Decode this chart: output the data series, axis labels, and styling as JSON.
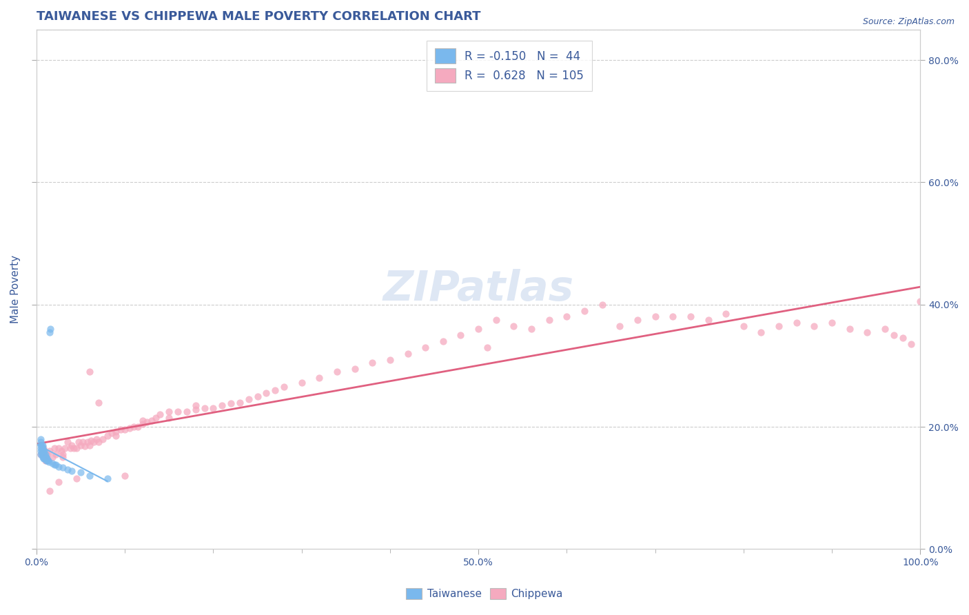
{
  "title": "TAIWANESE VS CHIPPEWA MALE POVERTY CORRELATION CHART",
  "source_text": "Source: ZipAtlas.com",
  "ylabel": "Male Poverty",
  "xlim": [
    0.0,
    1.0
  ],
  "ylim": [
    0.0,
    0.85
  ],
  "taiwanese_color": "#7ab8ed",
  "chippewa_color": "#f5aabf",
  "taiwanese_line_color": "#7ab8ed",
  "chippewa_line_color": "#e06080",
  "R_taiwanese": -0.15,
  "N_taiwanese": 44,
  "R_chippewa": 0.628,
  "N_chippewa": 105,
  "legend_label_taiwanese": "Taiwanese",
  "legend_label_chippewa": "Chippewa",
  "watermark": "ZIPatlas",
  "title_color": "#3a5a9a",
  "axis_label_color": "#3a5a9a",
  "tick_label_color": "#3a5a9a",
  "taiwanese_x": [
    0.005,
    0.005,
    0.005,
    0.005,
    0.005,
    0.005,
    0.006,
    0.006,
    0.006,
    0.006,
    0.007,
    0.007,
    0.007,
    0.007,
    0.007,
    0.008,
    0.008,
    0.008,
    0.008,
    0.009,
    0.009,
    0.009,
    0.009,
    0.01,
    0.01,
    0.01,
    0.011,
    0.011,
    0.012,
    0.012,
    0.013,
    0.014,
    0.015,
    0.016,
    0.018,
    0.02,
    0.022,
    0.025,
    0.03,
    0.035,
    0.04,
    0.05,
    0.06,
    0.08
  ],
  "taiwanese_y": [
    0.155,
    0.16,
    0.165,
    0.17,
    0.175,
    0.18,
    0.155,
    0.16,
    0.165,
    0.17,
    0.15,
    0.155,
    0.16,
    0.165,
    0.17,
    0.148,
    0.152,
    0.158,
    0.162,
    0.148,
    0.152,
    0.155,
    0.16,
    0.148,
    0.15,
    0.155,
    0.145,
    0.15,
    0.145,
    0.148,
    0.145,
    0.143,
    0.355,
    0.36,
    0.14,
    0.138,
    0.138,
    0.135,
    0.133,
    0.13,
    0.128,
    0.125,
    0.12,
    0.115
  ],
  "chippewa_x": [
    0.005,
    0.008,
    0.01,
    0.012,
    0.015,
    0.018,
    0.02,
    0.022,
    0.025,
    0.028,
    0.03,
    0.032,
    0.035,
    0.038,
    0.04,
    0.042,
    0.045,
    0.048,
    0.05,
    0.052,
    0.055,
    0.058,
    0.06,
    0.062,
    0.065,
    0.068,
    0.07,
    0.075,
    0.08,
    0.085,
    0.09,
    0.095,
    0.1,
    0.105,
    0.11,
    0.115,
    0.12,
    0.125,
    0.13,
    0.135,
    0.14,
    0.15,
    0.16,
    0.17,
    0.18,
    0.19,
    0.2,
    0.21,
    0.22,
    0.23,
    0.24,
    0.25,
    0.26,
    0.27,
    0.28,
    0.3,
    0.32,
    0.34,
    0.36,
    0.38,
    0.4,
    0.42,
    0.44,
    0.46,
    0.48,
    0.5,
    0.51,
    0.52,
    0.54,
    0.56,
    0.58,
    0.6,
    0.62,
    0.64,
    0.66,
    0.68,
    0.7,
    0.72,
    0.74,
    0.76,
    0.78,
    0.8,
    0.82,
    0.84,
    0.86,
    0.88,
    0.9,
    0.92,
    0.94,
    0.96,
    0.97,
    0.98,
    0.99,
    1.0,
    0.03,
    0.06,
    0.09,
    0.12,
    0.15,
    0.18,
    0.015,
    0.025,
    0.045,
    0.07,
    0.1
  ],
  "chippewa_y": [
    0.155,
    0.165,
    0.145,
    0.155,
    0.16,
    0.15,
    0.165,
    0.155,
    0.165,
    0.16,
    0.155,
    0.165,
    0.175,
    0.165,
    0.17,
    0.165,
    0.165,
    0.175,
    0.17,
    0.175,
    0.168,
    0.175,
    0.17,
    0.178,
    0.175,
    0.18,
    0.175,
    0.18,
    0.185,
    0.19,
    0.192,
    0.195,
    0.195,
    0.198,
    0.2,
    0.2,
    0.205,
    0.208,
    0.21,
    0.215,
    0.22,
    0.225,
    0.225,
    0.225,
    0.228,
    0.23,
    0.23,
    0.235,
    0.238,
    0.24,
    0.245,
    0.25,
    0.255,
    0.26,
    0.265,
    0.272,
    0.28,
    0.29,
    0.295,
    0.305,
    0.31,
    0.32,
    0.33,
    0.34,
    0.35,
    0.36,
    0.33,
    0.375,
    0.365,
    0.36,
    0.375,
    0.38,
    0.39,
    0.4,
    0.365,
    0.375,
    0.38,
    0.38,
    0.38,
    0.375,
    0.385,
    0.365,
    0.355,
    0.365,
    0.37,
    0.365,
    0.37,
    0.36,
    0.355,
    0.36,
    0.35,
    0.345,
    0.335,
    0.405,
    0.15,
    0.29,
    0.185,
    0.21,
    0.215,
    0.235,
    0.095,
    0.11,
    0.115,
    0.24,
    0.12
  ]
}
